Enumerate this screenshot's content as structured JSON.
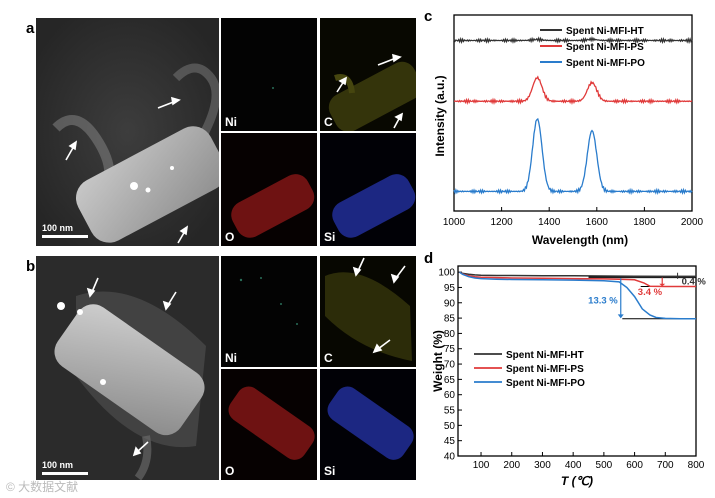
{
  "panels": {
    "a": "a",
    "b": "b",
    "c": "c",
    "d": "d"
  },
  "tem_a": {
    "scale_bar": "100 nm",
    "map_labels": [
      "Ni",
      "C",
      "O",
      "Si"
    ]
  },
  "tem_b": {
    "scale_bar": "100 nm",
    "map_labels": [
      "Ni",
      "C",
      "O",
      "Si"
    ]
  },
  "colors": {
    "ht": "#333333",
    "ps": "#e03a3a",
    "po": "#2a7ccc",
    "map_ni": "#0f2a22",
    "map_c": "#6b6b18",
    "map_o": "#a02020",
    "map_si": "#2a3aa8"
  },
  "chart_data": [
    {
      "type": "line",
      "panel": "c",
      "xlabel": "Wavelength (nm)",
      "ylabel": "Intensity (a.u.)",
      "xlim": [
        1000,
        2000
      ],
      "xticks": [
        1000,
        1200,
        1400,
        1600,
        1800,
        2000
      ],
      "legend_position": "top-right",
      "series": [
        {
          "name": "Spent Ni-MFI-HT",
          "color": "#333333",
          "baseline": 0.87,
          "peaks": [
            [
              1350,
              0.005
            ],
            [
              1580,
              0.006
            ]
          ]
        },
        {
          "name": "Spent Ni-MFI-PS",
          "color": "#e03a3a",
          "baseline": 0.56,
          "peaks": [
            [
              1350,
              0.12
            ],
            [
              1580,
              0.095
            ]
          ]
        },
        {
          "name": "Spent Ni-MFI-PO",
          "color": "#2a7ccc",
          "baseline": 0.1,
          "peaks": [
            [
              1350,
              0.37
            ],
            [
              1580,
              0.31
            ]
          ]
        }
      ]
    },
    {
      "type": "line",
      "panel": "d",
      "xlabel": "T (℃)",
      "ylabel": "Weight (%)",
      "xlim": [
        25,
        800
      ],
      "ylim": [
        40,
        102
      ],
      "xticks": [
        100,
        200,
        300,
        400,
        500,
        600,
        700,
        800
      ],
      "yticks": [
        40,
        45,
        50,
        55,
        60,
        65,
        70,
        75,
        80,
        85,
        90,
        95,
        100
      ],
      "legend_position": "center-left",
      "series": [
        {
          "name": "Spent Ni-MFI-HT",
          "color": "#333333",
          "x": [
            30,
            40,
            60,
            80,
            100,
            150,
            200,
            300,
            400,
            500,
            600,
            700,
            800
          ],
          "y": [
            100,
            99.6,
            99.3,
            99.1,
            99.0,
            98.9,
            98.9,
            98.85,
            98.8,
            98.75,
            98.65,
            98.6,
            98.6
          ]
        },
        {
          "name": "Spent Ni-MFI-PS",
          "color": "#e03a3a",
          "x": [
            30,
            40,
            60,
            80,
            100,
            150,
            200,
            300,
            400,
            500,
            550,
            600,
            630,
            650,
            700,
            750,
            800
          ],
          "y": [
            100,
            99.4,
            98.8,
            98.5,
            98.3,
            98.2,
            98.1,
            98.0,
            97.9,
            97.8,
            97.7,
            97.5,
            96.5,
            95.4,
            95.3,
            95.3,
            95.3
          ]
        },
        {
          "name": "Spent Ni-MFI-PO",
          "color": "#2a7ccc",
          "x": [
            30,
            40,
            60,
            80,
            100,
            150,
            200,
            300,
            400,
            500,
            550,
            575,
            600,
            625,
            650,
            670,
            700,
            750,
            800
          ],
          "y": [
            100,
            99.3,
            98.5,
            98.1,
            97.9,
            97.7,
            97.6,
            97.5,
            97.4,
            97.2,
            96.8,
            95,
            92,
            88,
            86,
            85.2,
            84.9,
            84.8,
            84.8
          ]
        }
      ],
      "annotations": [
        {
          "text": "0.4 %",
          "color": "#333333"
        },
        {
          "text": "3.4 %",
          "color": "#e03a3a"
        },
        {
          "text": "13.3 %",
          "color": "#2a7ccc"
        }
      ]
    }
  ],
  "watermark": "© 大数据文献"
}
